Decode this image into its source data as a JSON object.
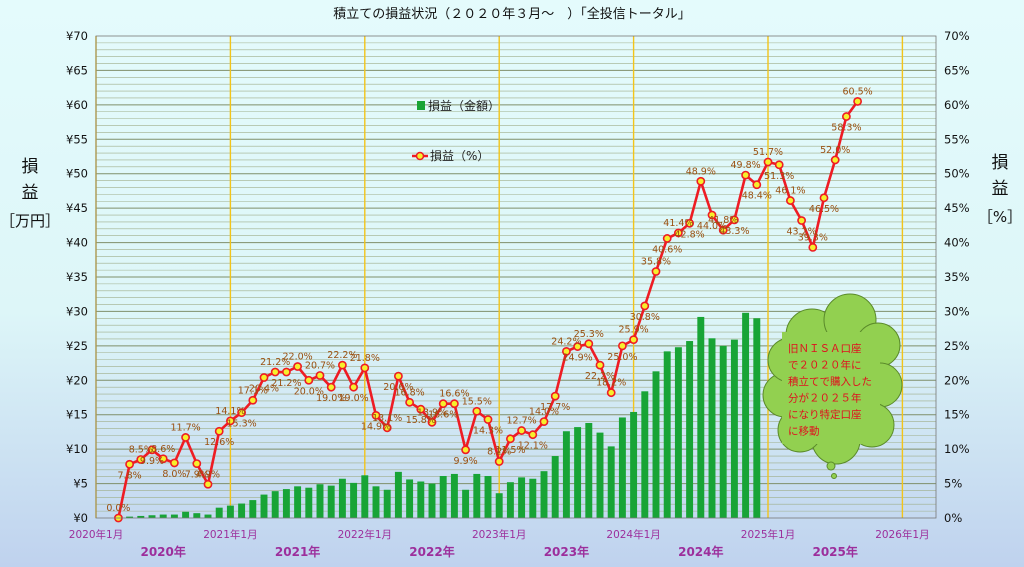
{
  "chart_data": {
    "type": "bar+line",
    "title": "積立ての損益状況（２０２０年３月～　）「全投信トータル」",
    "ylabel_left_chars": [
      "損",
      "益"
    ],
    "ylabel_left_unit": "［万円］",
    "ylabel_right_chars": [
      "損",
      "益"
    ],
    "ylabel_right_unit": "［%］",
    "y_left_ticks": [
      "¥0",
      "¥5",
      "¥10",
      "¥15",
      "¥20",
      "¥25",
      "¥30",
      "¥35",
      "¥40",
      "¥45",
      "¥50",
      "¥55",
      "¥60",
      "¥65",
      "¥70"
    ],
    "y_left_range": [
      0,
      70
    ],
    "y_right_ticks": [
      "0%",
      "5%",
      "10%",
      "15%",
      "20%",
      "25%",
      "30%",
      "35%",
      "40%",
      "45%",
      "50%",
      "55%",
      "60%",
      "65%",
      "70%"
    ],
    "y_right_range": [
      0,
      70
    ],
    "x_ticks": [
      "2020年1月",
      "2021年1月",
      "2022年1月",
      "2023年1月",
      "2024年1月",
      "2025年1月",
      "2026年1月"
    ],
    "year_labels": [
      "2020年",
      "2021年",
      "2022年",
      "2023年",
      "2024年",
      "2025年"
    ],
    "legend": {
      "bar": "損益（金額）",
      "line": "損益（%）"
    },
    "legend_placement": "upper-middle",
    "grid": true,
    "start_month": "2020-03",
    "bar_color": "#18a436",
    "line_color": "#ee1c24",
    "marker_color": "#f7ef2c",
    "label_color": "#9a5010",
    "year_line_color": "#f2c41a",
    "bars": [
      0,
      0.2,
      0.3,
      0.4,
      0.5,
      0.5,
      0.9,
      0.7,
      0.5,
      1.5,
      1.8,
      2.1,
      2.6,
      3.4,
      3.9,
      4.2,
      4.6,
      4.4,
      4.9,
      4.7,
      5.7,
      5.1,
      6.2,
      4.6,
      4.1,
      6.7,
      5.6,
      5.3,
      5.0,
      6.1,
      6.4,
      4.1,
      6.4,
      6.1,
      3.6,
      5.2,
      5.9,
      5.7,
      6.8,
      9.0,
      12.6,
      13.2,
      13.8,
      12.4,
      10.4,
      14.6,
      15.4,
      18.4,
      21.3,
      24.2,
      24.8,
      25.7,
      29.2,
      26.1,
      25.0,
      25.9,
      29.8,
      29.0
    ],
    "pct": [
      0.0,
      7.8,
      8.5,
      9.9,
      8.6,
      8.0,
      11.7,
      7.9,
      4.9,
      12.6,
      14.1,
      15.3,
      17.1,
      20.4,
      21.2,
      21.2,
      22.0,
      20.0,
      20.7,
      19.0,
      22.2,
      19.0,
      21.8,
      14.9,
      13.1,
      20.6,
      16.8,
      15.8,
      13.9,
      16.6,
      16.6,
      9.9,
      15.5,
      14.3,
      8.2,
      11.5,
      12.7,
      12.1,
      14.0,
      17.7,
      24.2,
      24.9,
      25.3,
      22.2,
      18.2,
      25.0,
      25.9,
      30.8,
      35.8,
      40.6,
      41.4,
      42.8,
      48.9,
      44.0,
      41.8,
      43.3,
      49.8,
      48.4,
      51.7,
      51.3,
      46.1,
      43.2,
      39.3,
      46.5,
      52.0,
      58.3,
      60.5
    ],
    "pct_labels": [
      "0.0%",
      "7.8%",
      "8.5%",
      "9.9%",
      "8.6%",
      "8.0%",
      "11.7%",
      "7.9%",
      "4.9%",
      "12.6%",
      "14.1%",
      "15.3%",
      "17.1%",
      "20.4%",
      "21.2%",
      "21.2%",
      "22.0%",
      "20.0%",
      "20.7%",
      "19.0%",
      "22.2%",
      "19.0%",
      "21.8%",
      "14.9%",
      "13.1%",
      "20.6%",
      "16.8%",
      "15.8%",
      "13.9%",
      "16.6%",
      "16.6%",
      "9.9%",
      "15.5%",
      "14.3%",
      "8.2%",
      "11.5%",
      "12.7%",
      "12.1%",
      "14.0%",
      "17.7%",
      "24.2%",
      "24.9%",
      "25.3%",
      "22.2%",
      "18.2%",
      "25.0%",
      "25.9%",
      "30.8%",
      "35.8%",
      "40.6%",
      "41.4%",
      "42.8%",
      "48.9%",
      "44.0%",
      "41.8%",
      "43.3%",
      "49.8%",
      "48.4%",
      "51.7%",
      "51.3%",
      "46.1%",
      "43.2%",
      "39.3%",
      "46.5%",
      "52.0%",
      "58.3%",
      "60.5%"
    ],
    "annotation_lines": [
      "旧ＮＩＳＡ口座",
      "で２０２０年に",
      "積立てで購入した",
      "分が２０２５年",
      "になり特定口座",
      "に移動"
    ]
  }
}
